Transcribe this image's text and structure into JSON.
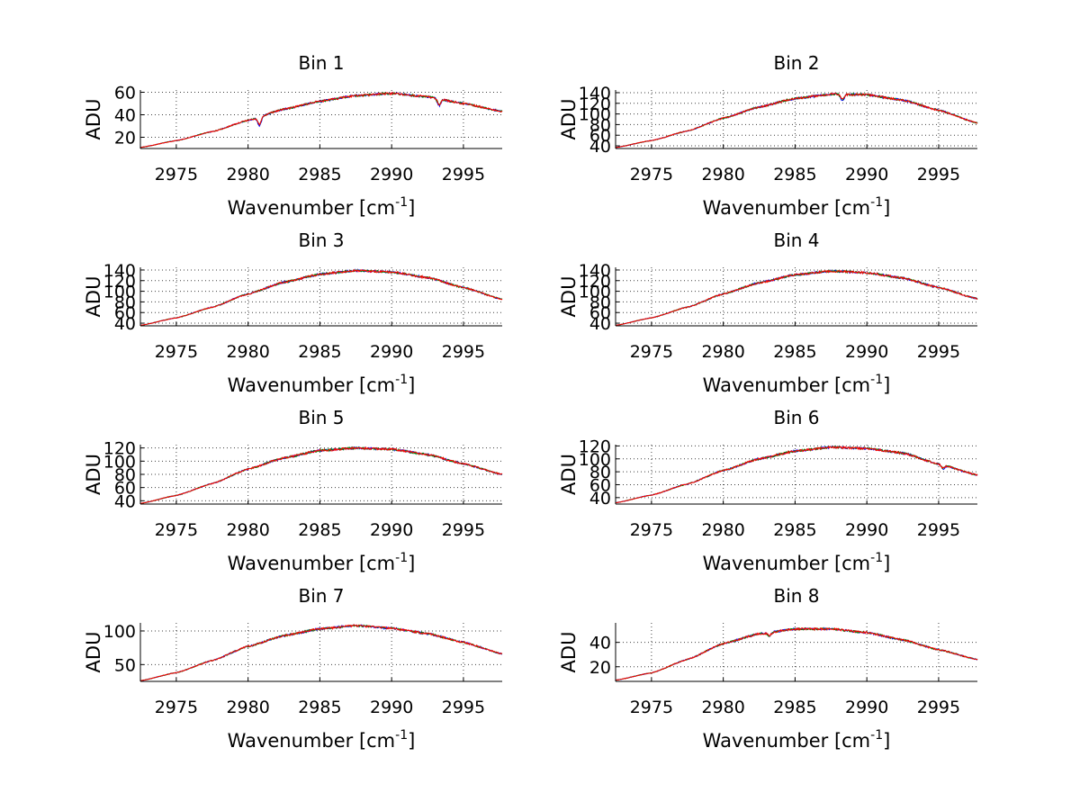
{
  "chart_data": [
    {
      "type": "line",
      "title": "Bin 1",
      "xlabel": "Wavenumber [cm",
      "xlabel_sup": "-1",
      "xlabel_end": "]",
      "ylabel": "ADU",
      "xlim": [
        2972.5,
        2997.7
      ],
      "ylim": [
        10,
        62
      ],
      "xticks": [
        "2975",
        "2980",
        "2985",
        "2990",
        "2995"
      ],
      "yticks": [
        "20",
        "40",
        "60"
      ],
      "xtick_values": [
        2975,
        2980,
        2985,
        2990,
        2995
      ],
      "ytick_values": [
        20,
        40,
        60
      ],
      "profile": [
        [
          2972.5,
          11
        ],
        [
          2975,
          17
        ],
        [
          2977.5,
          25
        ],
        [
          2980,
          35
        ],
        [
          2982.5,
          45
        ],
        [
          2985,
          52
        ],
        [
          2987.5,
          57
        ],
        [
          2990,
          59
        ],
        [
          2992.5,
          56
        ],
        [
          2995,
          50
        ],
        [
          2997.7,
          43
        ]
      ],
      "dips": [
        [
          2980.8,
          -8
        ],
        [
          2993.3,
          -6
        ]
      ],
      "grid": true,
      "series": [
        {
          "color": "#0000ff"
        },
        {
          "color": "#008000"
        },
        {
          "color": "#ff0000"
        }
      ]
    },
    {
      "type": "line",
      "title": "Bin 2",
      "xlabel": "Wavenumber [cm",
      "xlabel_sup": "-1",
      "xlabel_end": "]",
      "ylabel": "ADU",
      "xlim": [
        2972.5,
        2997.7
      ],
      "ylim": [
        35,
        145
      ],
      "xticks": [
        "2975",
        "2980",
        "2985",
        "2990",
        "2995"
      ],
      "yticks": [
        "40",
        "60",
        "80",
        "100",
        "120",
        "140"
      ],
      "xtick_values": [
        2975,
        2980,
        2985,
        2990,
        2995
      ],
      "ytick_values": [
        40,
        60,
        80,
        100,
        120,
        140
      ],
      "profile": [
        [
          2972.5,
          37
        ],
        [
          2975,
          50
        ],
        [
          2977.5,
          68
        ],
        [
          2980,
          92
        ],
        [
          2982.5,
          113
        ],
        [
          2985,
          129
        ],
        [
          2987.5,
          137
        ],
        [
          2990,
          136
        ],
        [
          2992.5,
          126
        ],
        [
          2995,
          107
        ],
        [
          2997.7,
          83
        ]
      ],
      "dips": [
        [
          2988.3,
          -12
        ]
      ],
      "grid": true,
      "series": [
        {
          "color": "#0000ff"
        },
        {
          "color": "#008000"
        },
        {
          "color": "#ff0000"
        }
      ]
    },
    {
      "type": "line",
      "title": "Bin 3",
      "xlabel": "Wavenumber [cm",
      "xlabel_sup": "-1",
      "xlabel_end": "]",
      "ylabel": "ADU",
      "xlim": [
        2972.5,
        2997.7
      ],
      "ylim": [
        35,
        145
      ],
      "xticks": [
        "2975",
        "2980",
        "2985",
        "2990",
        "2995"
      ],
      "yticks": [
        "40",
        "60",
        "80",
        "100",
        "120",
        "140"
      ],
      "xtick_values": [
        2975,
        2980,
        2985,
        2990,
        2995
      ],
      "ytick_values": [
        40,
        60,
        80,
        100,
        120,
        140
      ],
      "profile": [
        [
          2972.5,
          36
        ],
        [
          2975,
          50
        ],
        [
          2977.5,
          70
        ],
        [
          2980,
          95
        ],
        [
          2982.5,
          117
        ],
        [
          2985,
          132
        ],
        [
          2987.5,
          139
        ],
        [
          2990,
          136
        ],
        [
          2992.5,
          126
        ],
        [
          2995,
          107
        ],
        [
          2997.7,
          85
        ]
      ],
      "dips": [],
      "grid": true,
      "series": [
        {
          "color": "#0000ff"
        },
        {
          "color": "#008000"
        },
        {
          "color": "#ff0000"
        }
      ]
    },
    {
      "type": "line",
      "title": "Bin 4",
      "xlabel": "Wavenumber [cm",
      "xlabel_sup": "-1",
      "xlabel_end": "]",
      "ylabel": "ADU",
      "xlim": [
        2972.5,
        2997.7
      ],
      "ylim": [
        35,
        145
      ],
      "xticks": [
        "2975",
        "2980",
        "2985",
        "2990",
        "2995"
      ],
      "yticks": [
        "40",
        "60",
        "80",
        "100",
        "120",
        "140"
      ],
      "xtick_values": [
        2975,
        2980,
        2985,
        2990,
        2995
      ],
      "ytick_values": [
        40,
        60,
        80,
        100,
        120,
        140
      ],
      "profile": [
        [
          2972.5,
          36
        ],
        [
          2975,
          50
        ],
        [
          2977.5,
          70
        ],
        [
          2980,
          95
        ],
        [
          2982.5,
          116
        ],
        [
          2985,
          131
        ],
        [
          2987.5,
          138
        ],
        [
          2990,
          135
        ],
        [
          2992.5,
          125
        ],
        [
          2995,
          107
        ],
        [
          2997.7,
          86
        ]
      ],
      "dips": [],
      "grid": true,
      "series": [
        {
          "color": "#0000ff"
        },
        {
          "color": "#008000"
        },
        {
          "color": "#ff0000"
        }
      ]
    },
    {
      "type": "line",
      "title": "Bin 5",
      "xlabel": "Wavenumber [cm",
      "xlabel_sup": "-1",
      "xlabel_end": "]",
      "ylabel": "ADU",
      "xlim": [
        2972.5,
        2997.7
      ],
      "ylim": [
        35,
        125
      ],
      "xticks": [
        "2975",
        "2980",
        "2985",
        "2990",
        "2995"
      ],
      "yticks": [
        "40",
        "60",
        "80",
        "100",
        "120"
      ],
      "xtick_values": [
        2975,
        2980,
        2985,
        2990,
        2995
      ],
      "ytick_values": [
        40,
        60,
        80,
        100,
        120
      ],
      "profile": [
        [
          2972.5,
          36
        ],
        [
          2975,
          48
        ],
        [
          2977.5,
          66
        ],
        [
          2980,
          88
        ],
        [
          2982.5,
          105
        ],
        [
          2985,
          116
        ],
        [
          2987.5,
          120
        ],
        [
          2990,
          118
        ],
        [
          2992.5,
          110
        ],
        [
          2995,
          96
        ],
        [
          2997.7,
          80
        ]
      ],
      "dips": [],
      "grid": true,
      "series": [
        {
          "color": "#0000ff"
        },
        {
          "color": "#008000"
        },
        {
          "color": "#ff0000"
        }
      ]
    },
    {
      "type": "line",
      "title": "Bin 6",
      "xlabel": "Wavenumber [cm",
      "xlabel_sup": "-1",
      "xlabel_end": "]",
      "ylabel": "ADU",
      "xlim": [
        2972.5,
        2997.7
      ],
      "ylim": [
        30,
        122
      ],
      "xticks": [
        "2975",
        "2980",
        "2985",
        "2990",
        "2995"
      ],
      "yticks": [
        "40",
        "60",
        "80",
        "100",
        "120"
      ],
      "xtick_values": [
        2975,
        2980,
        2985,
        2990,
        2995
      ],
      "ytick_values": [
        40,
        60,
        80,
        100,
        120
      ],
      "profile": [
        [
          2972.5,
          32
        ],
        [
          2975,
          44
        ],
        [
          2977.5,
          61
        ],
        [
          2980,
          82
        ],
        [
          2982.5,
          100
        ],
        [
          2985,
          112
        ],
        [
          2987.5,
          118
        ],
        [
          2990,
          116
        ],
        [
          2992.5,
          109
        ],
        [
          2995,
          92
        ],
        [
          2997.7,
          75
        ]
      ],
      "dips": [
        [
          2995.3,
          -6
        ]
      ],
      "grid": true,
      "series": [
        {
          "color": "#0000ff"
        },
        {
          "color": "#008000"
        },
        {
          "color": "#ff0000"
        }
      ]
    },
    {
      "type": "line",
      "title": "Bin 7",
      "xlabel": "Wavenumber [cm",
      "xlabel_sup": "-1",
      "xlabel_end": "]",
      "ylabel": "ADU",
      "xlim": [
        2972.5,
        2997.7
      ],
      "ylim": [
        25,
        112
      ],
      "xticks": [
        "2975",
        "2980",
        "2985",
        "2990",
        "2995"
      ],
      "yticks": [
        "50",
        "100"
      ],
      "xtick_values": [
        2975,
        2980,
        2985,
        2990,
        2995
      ],
      "ytick_values": [
        50,
        100
      ],
      "profile": [
        [
          2972.5,
          26
        ],
        [
          2975,
          38
        ],
        [
          2977.5,
          56
        ],
        [
          2980,
          77
        ],
        [
          2982.5,
          93
        ],
        [
          2985,
          103
        ],
        [
          2987.5,
          108
        ],
        [
          2990,
          104
        ],
        [
          2992.5,
          96
        ],
        [
          2995,
          83
        ],
        [
          2997.7,
          66
        ]
      ],
      "dips": [],
      "grid": true,
      "series": [
        {
          "color": "#0000ff"
        },
        {
          "color": "#008000"
        },
        {
          "color": "#ff0000"
        }
      ]
    },
    {
      "type": "line",
      "title": "Bin 8",
      "xlabel": "Wavenumber [cm",
      "xlabel_sup": "-1",
      "xlabel_end": "]",
      "ylabel": "ADU",
      "xlim": [
        2972.5,
        2997.7
      ],
      "ylim": [
        8,
        56
      ],
      "xticks": [
        "2975",
        "2980",
        "2985",
        "2990",
        "2995"
      ],
      "yticks": [
        "20",
        "40"
      ],
      "xtick_values": [
        2975,
        2980,
        2985,
        2990,
        2995
      ],
      "ytick_values": [
        20,
        40
      ],
      "profile": [
        [
          2972.5,
          9
        ],
        [
          2975,
          15
        ],
        [
          2977.5,
          26
        ],
        [
          2980,
          39
        ],
        [
          2982.5,
          47
        ],
        [
          2985,
          51
        ],
        [
          2987.5,
          51
        ],
        [
          2990,
          48
        ],
        [
          2992.5,
          42
        ],
        [
          2995,
          34
        ],
        [
          2997.7,
          26
        ]
      ],
      "dips": [
        [
          2983.2,
          -3
        ]
      ],
      "grid": true,
      "series": [
        {
          "color": "#0000ff"
        },
        {
          "color": "#008000"
        },
        {
          "color": "#ff0000"
        }
      ]
    }
  ]
}
